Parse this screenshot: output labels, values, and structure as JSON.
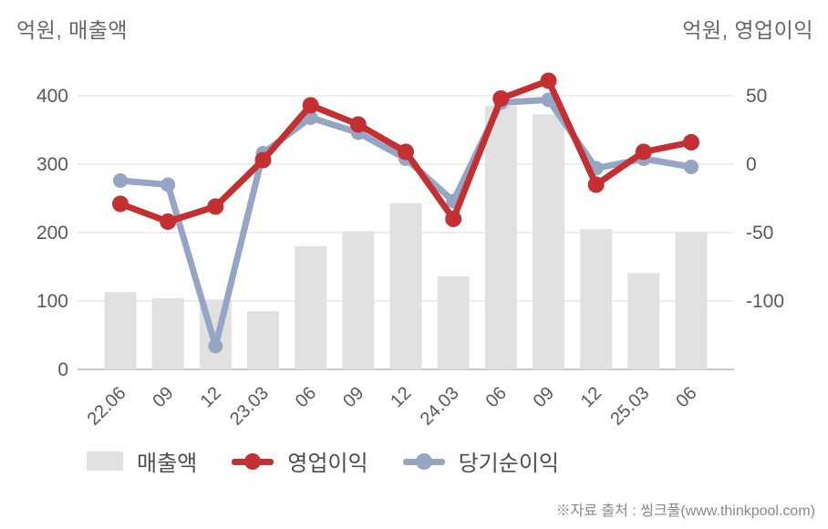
{
  "titles": {
    "left": "억원, 매출액",
    "right": "억원, 영업이익"
  },
  "footer": {
    "source": "※자료 출처 : 씽크풀(www.thinkpool.com)"
  },
  "colors": {
    "bar": "#e1e1e1",
    "operating_profit": "#c43031",
    "net_income": "#96a5c4",
    "grid": "#e7e7e7",
    "axis_line": "#b5b5b5",
    "tick_text": "#595959",
    "legend_text": "#4d4d4d"
  },
  "chart_data": {
    "type": "bar+line",
    "categories": [
      "22.06",
      "09",
      "12",
      "23.03",
      "06",
      "09",
      "12",
      "24.03",
      "06",
      "09",
      "12",
      "25.03",
      "06"
    ],
    "series": [
      {
        "name": "매출액",
        "type": "bar",
        "axis": "left",
        "color_key": "bar",
        "values": [
          113,
          104,
          102,
          85,
          180,
          202,
          243,
          136,
          385,
          373,
          205,
          141,
          201
        ]
      },
      {
        "name": "영업이익",
        "type": "line",
        "axis": "right",
        "color_key": "operating_profit",
        "values": [
          -29,
          -42,
          -31,
          3,
          43,
          29,
          9,
          -40,
          48,
          61,
          -15,
          9,
          16
        ]
      },
      {
        "name": "당기순이익",
        "type": "line",
        "axis": "right",
        "color_key": "net_income",
        "values": [
          -12,
          -15,
          -133,
          8,
          34,
          23,
          4,
          -27,
          45,
          47,
          -3,
          4,
          -2
        ]
      }
    ],
    "left_axis": {
      "unit": "억원",
      "label": "매출액",
      "ticks": [
        0,
        100,
        200,
        300,
        400
      ],
      "range": [
        0,
        400
      ]
    },
    "right_axis": {
      "unit": "억원",
      "label": "영업이익",
      "ticks": [
        50,
        0,
        -50,
        -100
      ],
      "range": [
        -150,
        50
      ]
    },
    "grid": true,
    "legend_position": "bottom"
  }
}
